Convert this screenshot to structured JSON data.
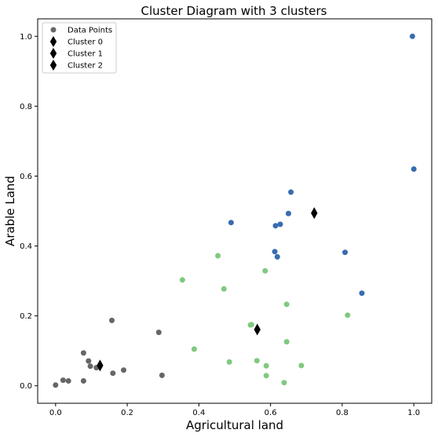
{
  "chart_data": {
    "type": "scatter",
    "title": "Cluster Diagram with 3 clusters",
    "xlabel": "Agricultural land",
    "ylabel": "Arable Land",
    "xlim": [
      -0.05,
      1.05
    ],
    "ylim": [
      -0.05,
      1.05
    ],
    "xticks": [
      "0.0",
      "0.2",
      "0.4",
      "0.6",
      "0.8",
      "1.0"
    ],
    "yticks": [
      "0.0",
      "0.2",
      "0.4",
      "0.6",
      "0.8",
      "1.0"
    ],
    "grid": false,
    "legend_position": "top-left",
    "legend": [
      "Data Points",
      "Cluster 0",
      "Cluster 1",
      "Cluster 2"
    ],
    "series": [
      {
        "color": "#666666",
        "points": [
          [
            0.0,
            0.002
          ],
          [
            0.021,
            0.016
          ],
          [
            0.036,
            0.014
          ],
          [
            0.078,
            0.014
          ],
          [
            0.078,
            0.094
          ],
          [
            0.092,
            0.071
          ],
          [
            0.097,
            0.056
          ],
          [
            0.114,
            0.052
          ],
          [
            0.157,
            0.187
          ],
          [
            0.16,
            0.036
          ],
          [
            0.19,
            0.045
          ],
          [
            0.288,
            0.153
          ],
          [
            0.297,
            0.03
          ]
        ]
      },
      {
        "color": "#7fc97f",
        "points": [
          [
            0.354,
            0.303
          ],
          [
            0.387,
            0.105
          ],
          [
            0.453,
            0.372
          ],
          [
            0.47,
            0.277
          ],
          [
            0.485,
            0.068
          ],
          [
            0.544,
            0.174
          ],
          [
            0.547,
            0.175
          ],
          [
            0.562,
            0.072
          ],
          [
            0.585,
            0.329
          ],
          [
            0.588,
            0.057
          ],
          [
            0.588,
            0.029
          ],
          [
            0.638,
            0.009
          ],
          [
            0.645,
            0.233
          ],
          [
            0.645,
            0.126
          ],
          [
            0.686,
            0.058
          ],
          [
            0.815,
            0.202
          ]
        ]
      },
      {
        "color": "#386cb0",
        "points": [
          [
            0.49,
            0.467
          ],
          [
            0.612,
            0.384
          ],
          [
            0.614,
            0.458
          ],
          [
            0.619,
            0.369
          ],
          [
            0.627,
            0.462
          ],
          [
            0.65,
            0.493
          ],
          [
            0.657,
            0.554
          ],
          [
            0.808,
            0.382
          ],
          [
            0.855,
            0.265
          ],
          [
            0.996,
            1.0
          ],
          [
            1.0,
            0.62
          ]
        ]
      }
    ],
    "centroids": [
      {
        "x": 0.124,
        "y": 0.058
      },
      {
        "x": 0.563,
        "y": 0.161
      },
      {
        "x": 0.722,
        "y": 0.494
      }
    ],
    "centroid_color": "#000000"
  }
}
